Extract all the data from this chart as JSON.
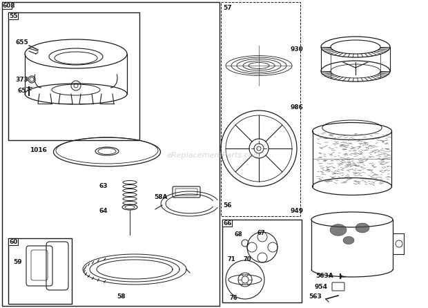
{
  "bg_color": "#ffffff",
  "lc": "#1a1a1a",
  "watermark": "eReplacementParts.com",
  "figw": 6.2,
  "figh": 4.46,
  "dpi": 100
}
